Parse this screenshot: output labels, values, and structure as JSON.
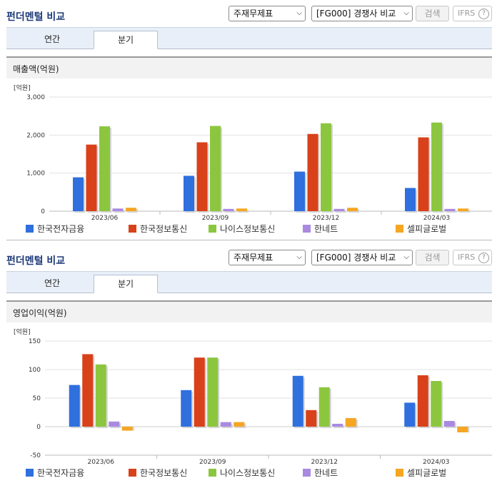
{
  "panels": [
    {
      "header_title": "펀더멘털 비교",
      "statement_select": "주재무제표",
      "compare_select": "[FG000] 경쟁사 비교",
      "search_label": "검색",
      "ifrs_label": "IFRS",
      "help_glyph": "?",
      "tabs": [
        {
          "label": "연간"
        },
        {
          "label": "분기"
        }
      ],
      "active_tab": 1,
      "section_title": "매출액(억원)"
    },
    {
      "header_title": "펀더멘털 비교",
      "statement_select": "주재무제표",
      "compare_select": "[FG000] 경쟁사 비교",
      "search_label": "검색",
      "ifrs_label": "IFRS",
      "help_glyph": "?",
      "tabs": [
        {
          "label": "연간"
        },
        {
          "label": "분기"
        }
      ],
      "active_tab": 1,
      "section_title": "영업이익(억원)"
    }
  ],
  "chart_data": [
    {
      "type": "bar",
      "unit_label": "[억원]",
      "categories": [
        "2023/06",
        "2023/09",
        "2023/12",
        "2024/03"
      ],
      "ylim": [
        0,
        3000
      ],
      "yticks": [
        0,
        1000,
        2000,
        3000
      ],
      "ytick_labels": [
        "0",
        "1,000",
        "2,000",
        "3,000"
      ],
      "grid": true,
      "legend": "bottom",
      "series": [
        {
          "name": "한국전자금융",
          "color": "#2f6fde",
          "values": [
            890,
            930,
            1040,
            610
          ]
        },
        {
          "name": "한국정보통신",
          "color": "#d8411a",
          "values": [
            1750,
            1810,
            2030,
            1940
          ]
        },
        {
          "name": "나이스정보통신",
          "color": "#8cc63f",
          "values": [
            2230,
            2240,
            2310,
            2330
          ]
        },
        {
          "name": "한네트",
          "color": "#a98ae0",
          "values": [
            70,
            60,
            60,
            60
          ]
        },
        {
          "name": "셀피글로벌",
          "color": "#f5a623",
          "values": [
            90,
            70,
            90,
            70
          ]
        }
      ]
    },
    {
      "type": "bar",
      "unit_label": "[억원]",
      "categories": [
        "2023/06",
        "2023/09",
        "2023/12",
        "2024/03"
      ],
      "ylim": [
        -50,
        150
      ],
      "yticks": [
        -50,
        0,
        50,
        100,
        150
      ],
      "ytick_labels": [
        "-50",
        "0",
        "50",
        "100",
        "150"
      ],
      "grid": true,
      "legend": "bottom",
      "series": [
        {
          "name": "한국전자금융",
          "color": "#2f6fde",
          "values": [
            73,
            64,
            89,
            42
          ]
        },
        {
          "name": "한국정보통신",
          "color": "#d8411a",
          "values": [
            127,
            121,
            29,
            90
          ]
        },
        {
          "name": "나이스정보통신",
          "color": "#8cc63f",
          "values": [
            109,
            121,
            69,
            80
          ]
        },
        {
          "name": "한네트",
          "color": "#a98ae0",
          "values": [
            9,
            8,
            5,
            10
          ]
        },
        {
          "name": "셀피글로벌",
          "color": "#f5a623",
          "values": [
            -7,
            8,
            15,
            -10
          ]
        }
      ]
    }
  ]
}
